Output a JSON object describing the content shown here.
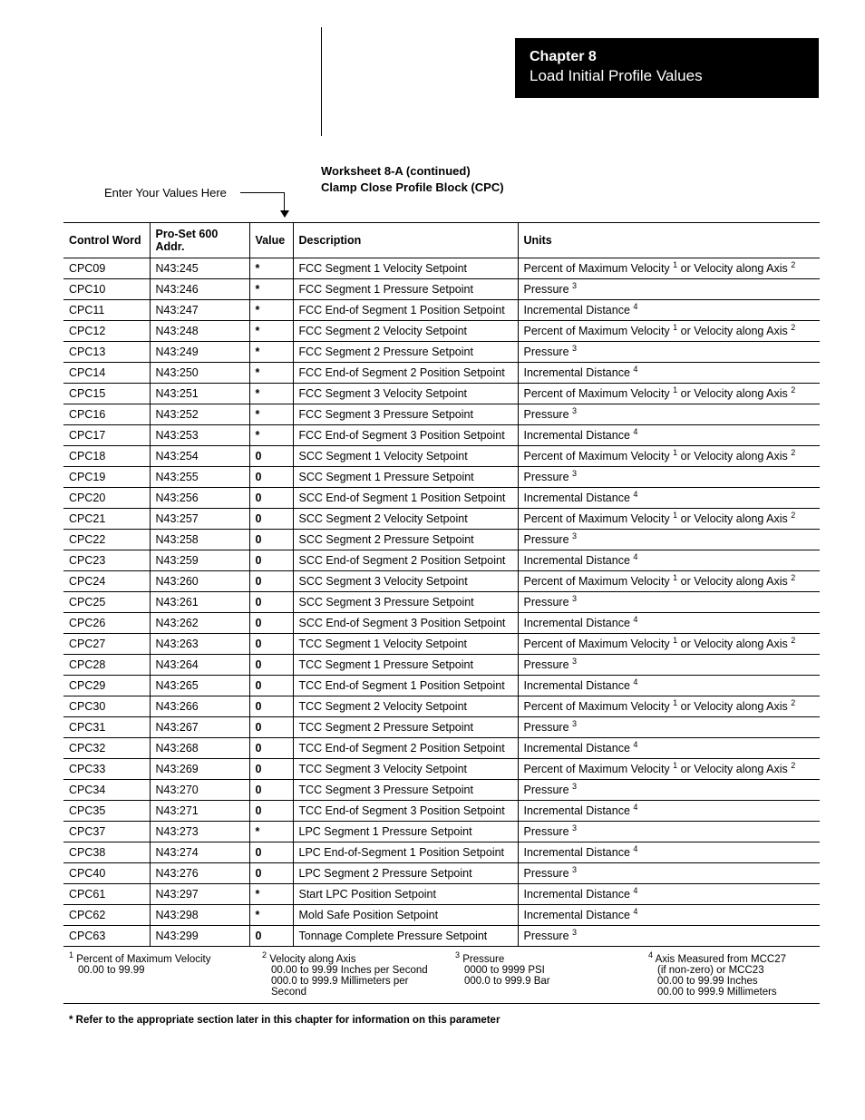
{
  "banner": {
    "chapter": "Chapter  8",
    "title": "Load Initial Profile Values"
  },
  "worksheet": {
    "line1": "Worksheet 8-A (continued)",
    "line2": "Clamp Close Profile Block (CPC)"
  },
  "enter_label": "Enter Your Values Here",
  "columns": {
    "c1": "Control Word",
    "c2": "Pro-Set 600 Addr.",
    "c3": "Value",
    "c4": "Description",
    "c5": "Units"
  },
  "unit_types": {
    "velocity": {
      "pre": "Percent of Maximum Velocity ",
      "sup1": "1",
      "mid": "  or Velocity along Axis ",
      "sup2": "2"
    },
    "pressure": {
      "pre": "Pressure ",
      "sup1": "3"
    },
    "distance": {
      "pre": "Incremental Distance ",
      "sup1": "4"
    }
  },
  "rows": [
    {
      "cw": "CPC09",
      "addr": "N43:245",
      "val": "*",
      "desc": "FCC Segment 1 Velocity Setpoint",
      "u": "velocity"
    },
    {
      "cw": "CPC10",
      "addr": "N43:246",
      "val": "*",
      "desc": "FCC Segment 1 Pressure Setpoint",
      "u": "pressure"
    },
    {
      "cw": "CPC11",
      "addr": "N43:247",
      "val": "*",
      "desc": "FCC End-of Segment 1 Position Setpoint",
      "u": "distance"
    },
    {
      "cw": "CPC12",
      "addr": "N43:248",
      "val": "*",
      "desc": "FCC Segment 2 Velocity Setpoint",
      "u": "velocity"
    },
    {
      "cw": "CPC13",
      "addr": "N43:249",
      "val": "*",
      "desc": "FCC Segment 2 Pressure Setpoint",
      "u": "pressure"
    },
    {
      "cw": "CPC14",
      "addr": "N43:250",
      "val": "*",
      "desc": "FCC End-of Segment 2 Position Setpoint",
      "u": "distance"
    },
    {
      "cw": "CPC15",
      "addr": "N43:251",
      "val": "*",
      "desc": "FCC Segment 3 Velocity Setpoint",
      "u": "velocity"
    },
    {
      "cw": "CPC16",
      "addr": "N43:252",
      "val": "*",
      "desc": "FCC Segment 3 Pressure Setpoint",
      "u": "pressure"
    },
    {
      "cw": "CPC17",
      "addr": "N43:253",
      "val": "*",
      "desc": "FCC End-of Segment 3 Position Setpoint",
      "u": "distance"
    },
    {
      "cw": "CPC18",
      "addr": "N43:254",
      "val": "0",
      "desc": "SCC Segment 1 Velocity Setpoint",
      "u": "velocity"
    },
    {
      "cw": "CPC19",
      "addr": "N43:255",
      "val": "0",
      "desc": "SCC Segment 1 Pressure Setpoint",
      "u": "pressure"
    },
    {
      "cw": "CPC20",
      "addr": "N43:256",
      "val": "0",
      "desc": "SCC End-of Segment 1 Position Setpoint",
      "u": "distance"
    },
    {
      "cw": "CPC21",
      "addr": "N43:257",
      "val": "0",
      "desc": "SCC Segment 2 Velocity Setpoint",
      "u": "velocity"
    },
    {
      "cw": "CPC22",
      "addr": "N43:258",
      "val": "0",
      "desc": "SCC Segment 2 Pressure Setpoint",
      "u": "pressure"
    },
    {
      "cw": "CPC23",
      "addr": "N43:259",
      "val": "0",
      "desc": "SCC End-of Segment 2 Position Setpoint",
      "u": "distance"
    },
    {
      "cw": "CPC24",
      "addr": "N43:260",
      "val": "0",
      "desc": "SCC Segment 3 Velocity Setpoint",
      "u": "velocity"
    },
    {
      "cw": "CPC25",
      "addr": "N43:261",
      "val": "0",
      "desc": "SCC Segment 3 Pressure Setpoint",
      "u": "pressure"
    },
    {
      "cw": "CPC26",
      "addr": "N43:262",
      "val": "0",
      "desc": "SCC End-of Segment 3 Position Setpoint",
      "u": "distance"
    },
    {
      "cw": "CPC27",
      "addr": "N43:263",
      "val": "0",
      "desc": "TCC Segment 1 Velocity Setpoint",
      "u": "velocity"
    },
    {
      "cw": "CPC28",
      "addr": "N43:264",
      "val": "0",
      "desc": "TCC Segment 1 Pressure Setpoint",
      "u": "pressure"
    },
    {
      "cw": "CPC29",
      "addr": "N43:265",
      "val": "0",
      "desc": "TCC End-of Segment 1 Position Setpoint",
      "u": "distance"
    },
    {
      "cw": "CPC30",
      "addr": "N43:266",
      "val": "0",
      "desc": "TCC Segment 2 Velocity Setpoint",
      "u": "velocity"
    },
    {
      "cw": "CPC31",
      "addr": "N43:267",
      "val": "0",
      "desc": "TCC Segment 2 Pressure Setpoint",
      "u": "pressure"
    },
    {
      "cw": "CPC32",
      "addr": "N43:268",
      "val": "0",
      "desc": "TCC End-of Segment 2 Position Setpoint",
      "u": "distance"
    },
    {
      "cw": "CPC33",
      "addr": "N43:269",
      "val": "0",
      "desc": "TCC Segment 3 Velocity Setpoint",
      "u": "velocity"
    },
    {
      "cw": "CPC34",
      "addr": "N43:270",
      "val": "0",
      "desc": "TCC Segment 3 Pressure Setpoint",
      "u": "pressure"
    },
    {
      "cw": "CPC35",
      "addr": "N43:271",
      "val": "0",
      "desc": "TCC End-of Segment 3 Position Setpoint",
      "u": "distance"
    },
    {
      "cw": "CPC37",
      "addr": "N43:273",
      "val": "*",
      "desc": "LPC Segment 1 Pressure Setpoint",
      "u": "pressure"
    },
    {
      "cw": "CPC38",
      "addr": "N43:274",
      "val": "0",
      "desc": "LPC End-of-Segment 1 Position Setpoint",
      "u": "distance"
    },
    {
      "cw": "CPC40",
      "addr": "N43:276",
      "val": "0",
      "desc": "LPC Segment 2 Pressure Setpoint",
      "u": "pressure"
    },
    {
      "cw": "CPC61",
      "addr": "N43:297",
      "val": "*",
      "desc": "Start LPC Position Setpoint",
      "u": "distance"
    },
    {
      "cw": "CPC62",
      "addr": "N43:298",
      "val": "*",
      "desc": "Mold Safe Position Setpoint",
      "u": "distance"
    },
    {
      "cw": "CPC63",
      "addr": "N43:299",
      "val": "0",
      "desc": "Tonnage Complete Pressure Setpoint",
      "u": "pressure"
    }
  ],
  "footnotes": {
    "f1": {
      "num": "1",
      "title": "Percent of Maximum Velocity",
      "l1": "00.00 to 99.99"
    },
    "f2": {
      "num": "2",
      "title": "Velocity along Axis",
      "l1": "00.00 to 99.99 Inches per Second",
      "l2": "000.0 to 999.9 Millimeters per Second"
    },
    "f3": {
      "num": "3",
      "title": "Pressure",
      "l1": "0000 to 9999 PSI",
      "l2": "000.0 to 999.9 Bar"
    },
    "f4": {
      "num": "4",
      "title": "Axis Measured from MCC27",
      "l1": "(if non-zero) or MCC23",
      "l2": "00.00 to 99.99 Inches",
      "l3": "00.00 to 999.9 Millimeters"
    }
  },
  "star_note": "* Refer to the appropriate section later in this chapter for information on this parameter"
}
